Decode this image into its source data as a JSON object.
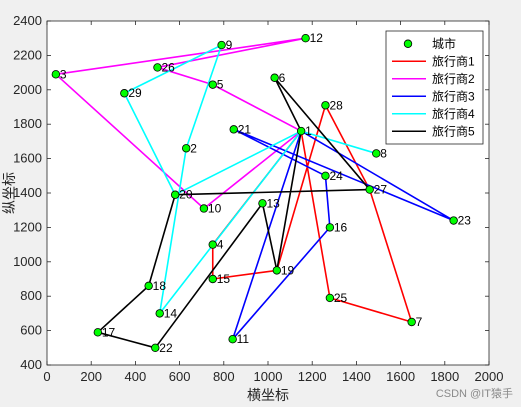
{
  "chart_data": {
    "type": "line",
    "xlabel": "横坐标",
    "ylabel": "纵坐标",
    "xlim": [
      0,
      2000
    ],
    "ylim": [
      400,
      2400
    ],
    "xticks": [
      0,
      200,
      400,
      600,
      800,
      1000,
      1200,
      1400,
      1600,
      1800,
      2000
    ],
    "yticks": [
      400,
      600,
      800,
      1000,
      1200,
      1400,
      1600,
      1800,
      2000,
      2200,
      2400
    ],
    "grid": false,
    "legend_position": "top-right",
    "cities_legend": "城市",
    "cities": [
      {
        "id": "2",
        "x": 630,
        "y": 1660
      },
      {
        "id": "3",
        "x": 40,
        "y": 2090
      },
      {
        "id": "4",
        "x": 750,
        "y": 1100
      },
      {
        "id": "5",
        "x": 750,
        "y": 2030
      },
      {
        "id": "6",
        "x": 1030,
        "y": 2070
      },
      {
        "id": "7",
        "x": 1650,
        "y": 650
      },
      {
        "id": "8",
        "x": 1490,
        "y": 1630
      },
      {
        "id": "9",
        "x": 790,
        "y": 2260
      },
      {
        "id": "10",
        "x": 710,
        "y": 1310
      },
      {
        "id": "11",
        "x": 840,
        "y": 550
      },
      {
        "id": "12",
        "x": 1170,
        "y": 2300
      },
      {
        "id": "13",
        "x": 975,
        "y": 1340
      },
      {
        "id": "14",
        "x": 510,
        "y": 700
      },
      {
        "id": "15",
        "x": 750,
        "y": 900
      },
      {
        "id": "16",
        "x": 1280,
        "y": 1200
      },
      {
        "id": "17",
        "x": 230,
        "y": 590
      },
      {
        "id": "18",
        "x": 460,
        "y": 860
      },
      {
        "id": "19",
        "x": 1040,
        "y": 950
      },
      {
        "id": "20",
        "x": 580,
        "y": 1390
      },
      {
        "id": "21",
        "x": 845,
        "y": 1770
      },
      {
        "id": "22",
        "x": 490,
        "y": 500
      },
      {
        "id": "23",
        "x": 1840,
        "y": 1240
      },
      {
        "id": "24",
        "x": 1260,
        "y": 1500
      },
      {
        "id": "25",
        "x": 1280,
        "y": 790
      },
      {
        "id": "26",
        "x": 500,
        "y": 2130
      },
      {
        "id": "27",
        "x": 1460,
        "y": 1420
      },
      {
        "id": "28",
        "x": 1260,
        "y": 1910
      },
      {
        "id": "29",
        "x": 350,
        "y": 1980
      },
      {
        "id": "1",
        "x": 1150,
        "y": 1760
      }
    ],
    "series": [
      {
        "name": "旅行商1",
        "color": "#ff0000",
        "route": [
          "1",
          "25",
          "7",
          "27",
          "28",
          "19",
          "15",
          "4",
          "1"
        ]
      },
      {
        "name": "旅行商2",
        "color": "#ff00ff",
        "route": [
          "1",
          "10",
          "3",
          "12",
          "26",
          "5",
          "1"
        ]
      },
      {
        "name": "旅行商3",
        "color": "#0000ff",
        "route": [
          "1",
          "11",
          "16",
          "24",
          "21",
          "23",
          "1"
        ]
      },
      {
        "name": "旅行商4",
        "color": "#00ffff",
        "route": [
          "1",
          "14",
          "2",
          "9",
          "29",
          "20",
          "1",
          "8",
          "1"
        ]
      },
      {
        "name": "旅行商5",
        "color": "#000000",
        "route": [
          "1",
          "19",
          "13",
          "22",
          "17",
          "18",
          "20",
          "27",
          "6",
          "1"
        ]
      }
    ]
  },
  "watermark": "CSDN @IT猿手"
}
